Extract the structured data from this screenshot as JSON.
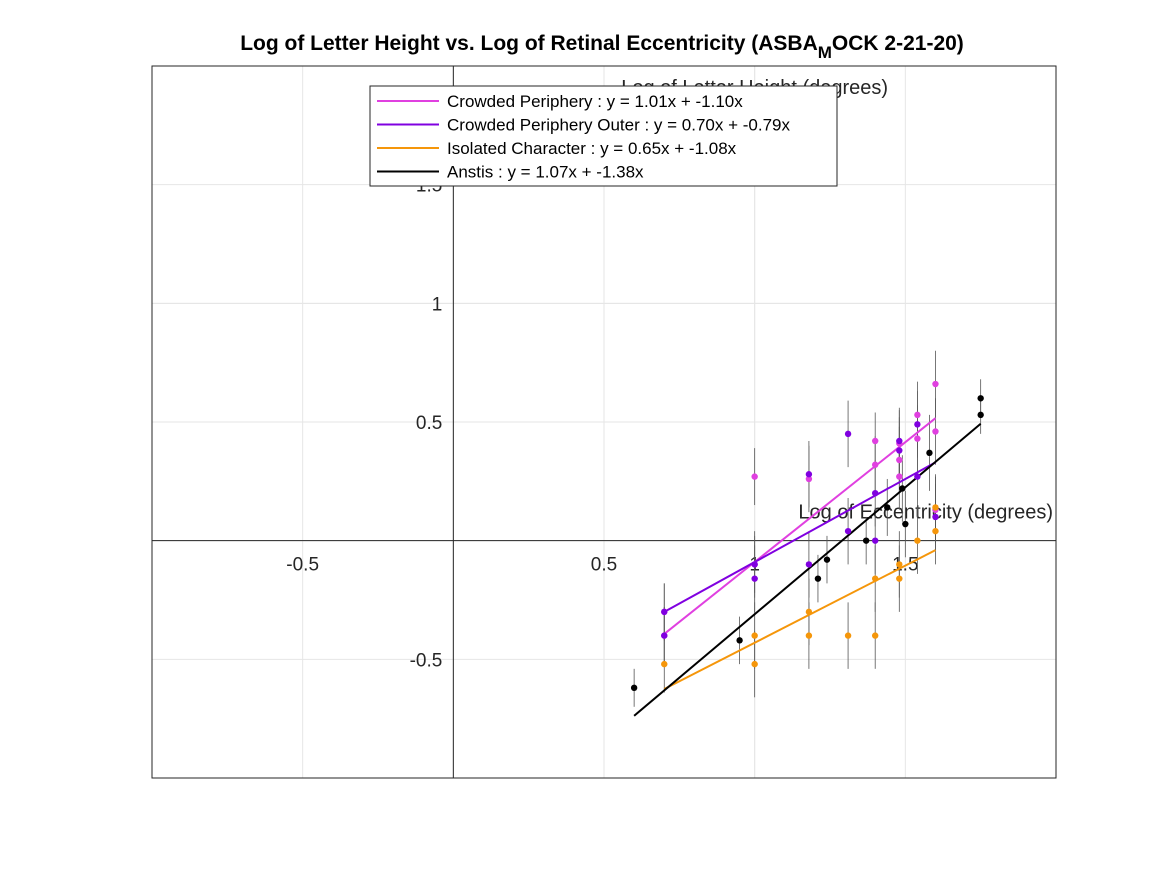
{
  "chart_data": {
    "type": "scatter",
    "title_main": "Log of Letter Height vs. Log of Retinal Eccentricity (ASBA",
    "title_subscript": "M",
    "title_tail": "OCK 2-21-20)",
    "xlabel": "Log of Eccentricity (degrees)",
    "ylabel": "Log of Letter Height (degrees)",
    "xlim": [
      -1.0,
      2.0
    ],
    "ylim": [
      -1.0,
      2.0
    ],
    "xticks": [
      -0.5,
      0.5,
      1,
      1.5
    ],
    "xtick_labels": [
      "-0.5",
      "0.5",
      "1",
      "1.5"
    ],
    "yticks": [
      -0.5,
      0.5,
      1,
      1.5
    ],
    "ytick_labels": [
      "-0.5",
      "0.5",
      "1",
      "1.5"
    ],
    "grid": true,
    "legend_position": "top-center",
    "series": [
      {
        "name": "Crowded Periphery : y = 1.01x + -1.10x",
        "color": "#e040e0",
        "fit": {
          "slope": 1.01,
          "intercept": -1.1,
          "x_range": [
            0.7,
            1.6
          ]
        },
        "points": [
          {
            "x": 0.7,
            "y": -0.3,
            "err": 0.12
          },
          {
            "x": 0.7,
            "y": -0.4,
            "err": 0.12
          },
          {
            "x": 1.0,
            "y": 0.27,
            "err": 0.12
          },
          {
            "x": 1.0,
            "y": -0.1,
            "err": 0.12
          },
          {
            "x": 1.18,
            "y": 0.26,
            "err": 0.14
          },
          {
            "x": 1.4,
            "y": 0.42,
            "err": 0.12
          },
          {
            "x": 1.4,
            "y": 0.32,
            "err": 0.12
          },
          {
            "x": 1.48,
            "y": 0.41,
            "err": 0.14
          },
          {
            "x": 1.48,
            "y": 0.34,
            "err": 0.14
          },
          {
            "x": 1.48,
            "y": 0.27,
            "err": 0.14
          },
          {
            "x": 1.54,
            "y": 0.53,
            "err": 0.14
          },
          {
            "x": 1.54,
            "y": 0.43,
            "err": 0.14
          },
          {
            "x": 1.6,
            "y": 0.66,
            "err": 0.14
          },
          {
            "x": 1.6,
            "y": 0.46,
            "err": 0.14
          },
          {
            "x": 1.6,
            "y": 0.13,
            "err": 0.14
          }
        ]
      },
      {
        "name": "Crowded Periphery Outer : y = 0.70x + -0.79x",
        "color": "#8000e0",
        "fit": {
          "slope": 0.7,
          "intercept": -0.79,
          "x_range": [
            0.7,
            1.6
          ]
        },
        "points": [
          {
            "x": 0.7,
            "y": -0.3,
            "err": 0.12
          },
          {
            "x": 0.7,
            "y": -0.4,
            "err": 0.12
          },
          {
            "x": 1.0,
            "y": -0.1,
            "err": 0.14
          },
          {
            "x": 1.0,
            "y": -0.16,
            "err": 0.14
          },
          {
            "x": 1.18,
            "y": 0.28,
            "err": 0.14
          },
          {
            "x": 1.18,
            "y": -0.1,
            "err": 0.14
          },
          {
            "x": 1.31,
            "y": 0.45,
            "err": 0.14
          },
          {
            "x": 1.31,
            "y": 0.04,
            "err": 0.14
          },
          {
            "x": 1.4,
            "y": 0.2,
            "err": 0.14
          },
          {
            "x": 1.4,
            "y": 0.0,
            "err": 0.14
          },
          {
            "x": 1.48,
            "y": 0.42,
            "err": 0.14
          },
          {
            "x": 1.48,
            "y": 0.38,
            "err": 0.14
          },
          {
            "x": 1.54,
            "y": 0.49,
            "err": 0.14
          },
          {
            "x": 1.54,
            "y": 0.27,
            "err": 0.14
          },
          {
            "x": 1.6,
            "y": 0.1,
            "err": 0.14
          }
        ]
      },
      {
        "name": "Isolated Character : y = 0.65x + -1.08x",
        "color": "#f5960a",
        "fit": {
          "slope": 0.65,
          "intercept": -1.08,
          "x_range": [
            0.7,
            1.6
          ]
        },
        "points": [
          {
            "x": 0.7,
            "y": -0.52,
            "err": 0.12
          },
          {
            "x": 1.0,
            "y": -0.4,
            "err": 0.14
          },
          {
            "x": 1.0,
            "y": -0.52,
            "err": 0.14
          },
          {
            "x": 1.18,
            "y": -0.3,
            "err": 0.14
          },
          {
            "x": 1.18,
            "y": -0.4,
            "err": 0.14
          },
          {
            "x": 1.31,
            "y": -0.4,
            "err": 0.14
          },
          {
            "x": 1.4,
            "y": -0.16,
            "err": 0.14
          },
          {
            "x": 1.4,
            "y": -0.4,
            "err": 0.14
          },
          {
            "x": 1.48,
            "y": -0.1,
            "err": 0.14
          },
          {
            "x": 1.48,
            "y": -0.16,
            "err": 0.14
          },
          {
            "x": 1.54,
            "y": 0.0,
            "err": 0.14
          },
          {
            "x": 1.6,
            "y": 0.04,
            "err": 0.14
          },
          {
            "x": 1.6,
            "y": 0.14,
            "err": 0.14
          }
        ]
      },
      {
        "name": "Anstis : y = 1.07x + -1.38x",
        "color": "#000000",
        "fit": {
          "slope": 1.07,
          "intercept": -1.38,
          "x_range": [
            0.6,
            1.75
          ]
        },
        "points": [
          {
            "x": 0.6,
            "y": -0.62,
            "err": 0.08
          },
          {
            "x": 0.95,
            "y": -0.42,
            "err": 0.1
          },
          {
            "x": 1.21,
            "y": -0.16,
            "err": 0.1
          },
          {
            "x": 1.24,
            "y": -0.08,
            "err": 0.1
          },
          {
            "x": 1.37,
            "y": 0.0,
            "err": 0.1
          },
          {
            "x": 1.44,
            "y": 0.14,
            "err": 0.12
          },
          {
            "x": 1.49,
            "y": 0.22,
            "err": 0.14
          },
          {
            "x": 1.5,
            "y": 0.07,
            "err": 0.14
          },
          {
            "x": 1.58,
            "y": 0.37,
            "err": 0.16
          },
          {
            "x": 1.75,
            "y": 0.6,
            "err": 0.08
          },
          {
            "x": 1.75,
            "y": 0.53,
            "err": 0.08
          }
        ]
      }
    ]
  }
}
